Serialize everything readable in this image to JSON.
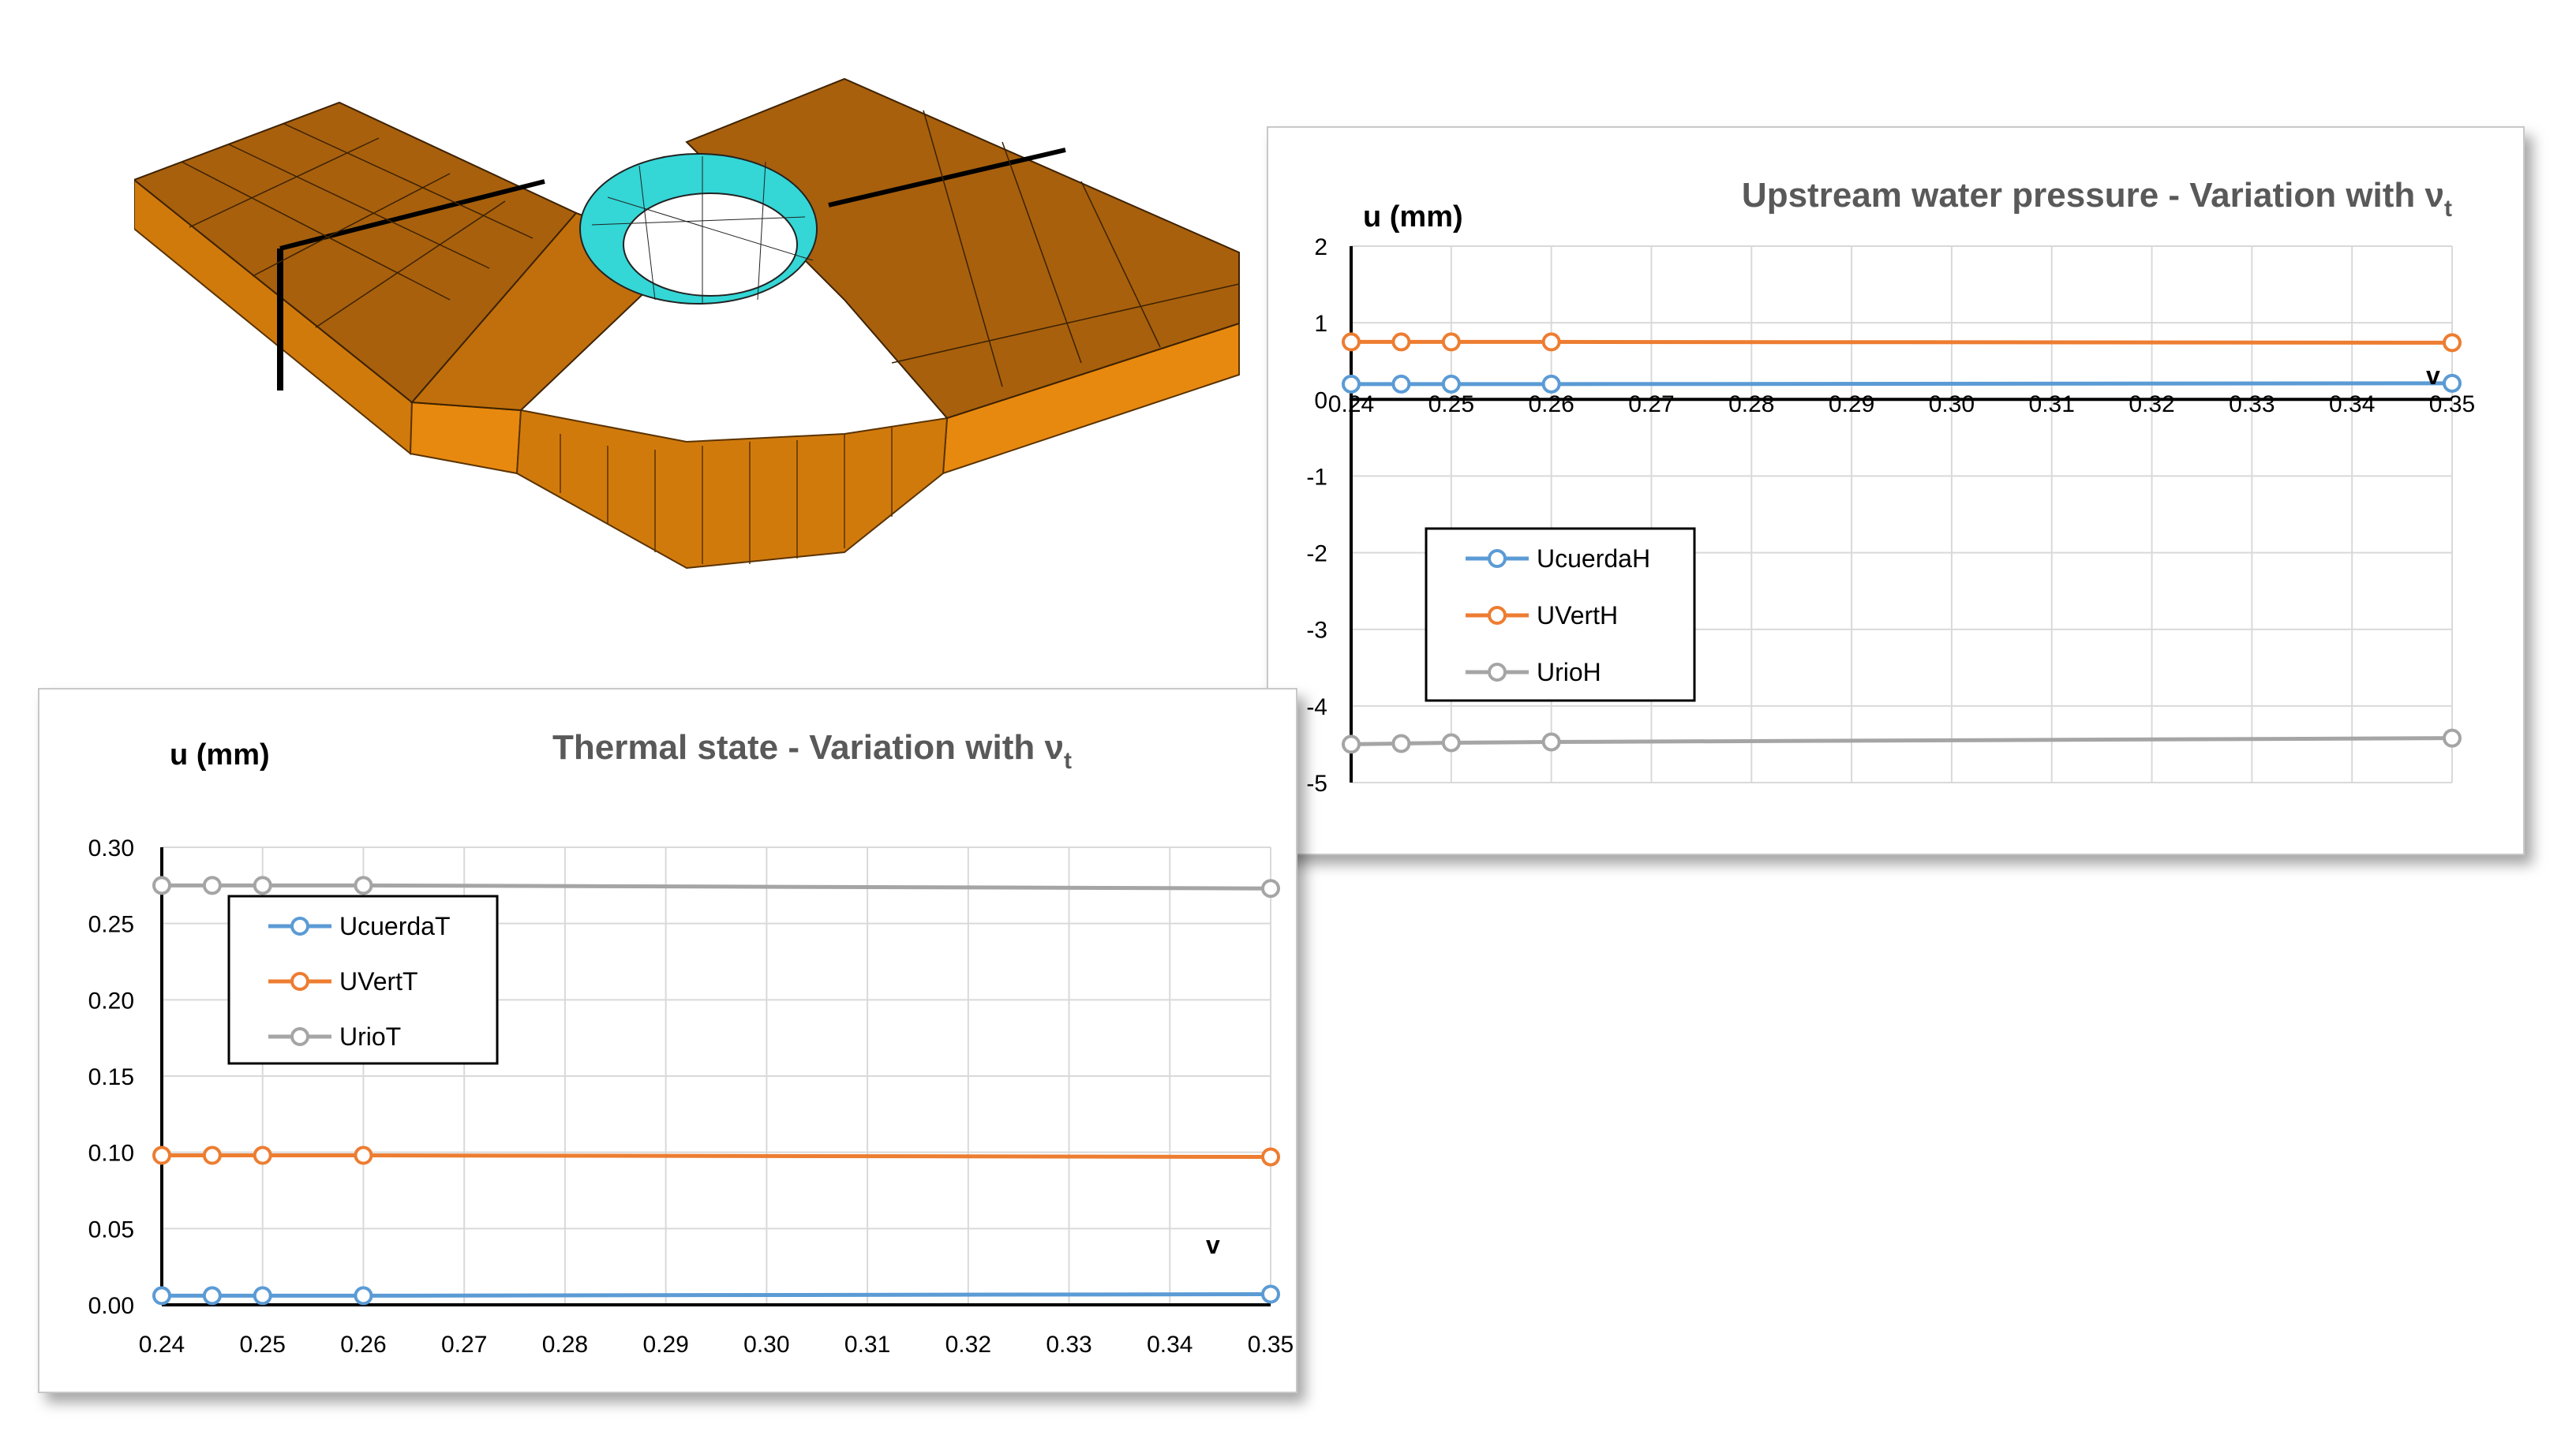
{
  "colors": {
    "mesh_orange": "#e8890f",
    "mesh_orange_top": "#a8600d",
    "mesh_orange_side": "#d17a0c",
    "mesh_cyan": "#34d6d6",
    "series_blue": "#5b9bd5",
    "series_orange": "#ed7d31",
    "series_gray": "#a5a5a5",
    "gridline": "#d9d9d9",
    "title_gray": "#595959"
  },
  "mesh_figure": {
    "icon": "finite-element-mesh-dam-icon"
  },
  "chart_data": [
    {
      "id": "upstream",
      "type": "line",
      "title": "Upstream water pressure - Variation with ν",
      "title_subscript": "t",
      "ylabel": "u (mm)",
      "xlabel": "v",
      "xlim": [
        0.24,
        0.35
      ],
      "ylim": [
        -5,
        2
      ],
      "x_ticks": [
        "0.24",
        "0.25",
        "0.26",
        "0.27",
        "0.28",
        "0.29",
        "0.30",
        "0.31",
        "0.32",
        "0.33",
        "0.34",
        "0.35"
      ],
      "y_ticks": [
        "2",
        "1",
        "0",
        "-1",
        "-2",
        "-3",
        "-4",
        "-5"
      ],
      "grid": true,
      "legend_position": "left",
      "x": [
        0.24,
        0.245,
        0.25,
        0.26,
        0.35
      ],
      "series": [
        {
          "name": "UcuerdaH",
          "color": "#5b9bd5",
          "values": [
            0.2,
            0.2,
            0.2,
            0.2,
            0.21
          ]
        },
        {
          "name": "UVertH",
          "color": "#ed7d31",
          "values": [
            0.75,
            0.75,
            0.75,
            0.75,
            0.74
          ]
        },
        {
          "name": "UrioH",
          "color": "#a5a5a5",
          "values": [
            -4.5,
            -4.49,
            -4.48,
            -4.47,
            -4.42
          ]
        }
      ]
    },
    {
      "id": "thermal",
      "type": "line",
      "title": "Thermal state - Variation with ν",
      "title_subscript": "t",
      "ylabel": "u (mm)",
      "xlabel": "v",
      "xlim": [
        0.24,
        0.35
      ],
      "ylim": [
        0,
        0.3
      ],
      "x_ticks": [
        "0.24",
        "0.25",
        "0.26",
        "0.27",
        "0.28",
        "0.29",
        "0.30",
        "0.31",
        "0.32",
        "0.33",
        "0.34",
        "0.35"
      ],
      "y_ticks": [
        "0.30",
        "0.25",
        "0.20",
        "0.15",
        "0.10",
        "0.05",
        "0.00"
      ],
      "grid": true,
      "legend_position": "top-left",
      "x": [
        0.24,
        0.245,
        0.25,
        0.26,
        0.35
      ],
      "series": [
        {
          "name": "UcuerdaT",
          "color": "#5b9bd5",
          "values": [
            0.006,
            0.006,
            0.006,
            0.006,
            0.007
          ]
        },
        {
          "name": "UVertT",
          "color": "#ed7d31",
          "values": [
            0.098,
            0.098,
            0.098,
            0.098,
            0.097
          ]
        },
        {
          "name": "UrioT",
          "color": "#a5a5a5",
          "values": [
            0.275,
            0.275,
            0.275,
            0.275,
            0.273
          ]
        }
      ]
    }
  ]
}
